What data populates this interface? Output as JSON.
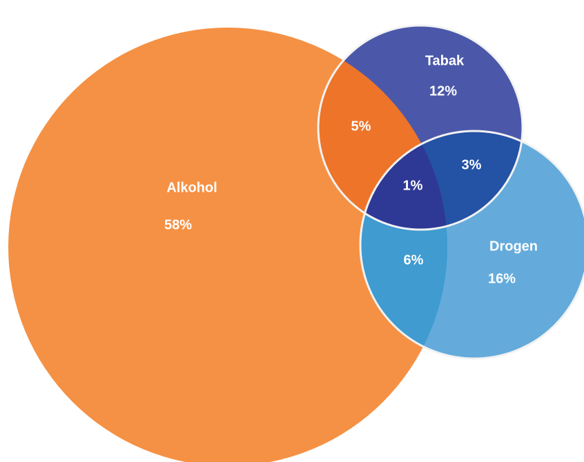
{
  "chart_data": {
    "type": "venn",
    "sets": [
      {
        "name": "Alkohol",
        "value": "58%",
        "color": "#F59144"
      },
      {
        "name": "Tabak",
        "value": "12%",
        "color": "#4B58A9"
      },
      {
        "name": "Drogen",
        "value": "16%",
        "color": "#64ABDC"
      }
    ],
    "intersections": [
      {
        "sets": [
          "Alkohol",
          "Tabak"
        ],
        "value": "5%",
        "color": "#EE7429"
      },
      {
        "sets": [
          "Alkohol",
          "Drogen"
        ],
        "value": "6%",
        "color": "#3F9BD0"
      },
      {
        "sets": [
          "Tabak",
          "Drogen"
        ],
        "value": "3%",
        "color": "#2452A4"
      },
      {
        "sets": [
          "Alkohol",
          "Tabak",
          "Drogen"
        ],
        "value": "1%",
        "color": "#2E3995"
      }
    ],
    "outline_color": "#F2F2F2"
  }
}
